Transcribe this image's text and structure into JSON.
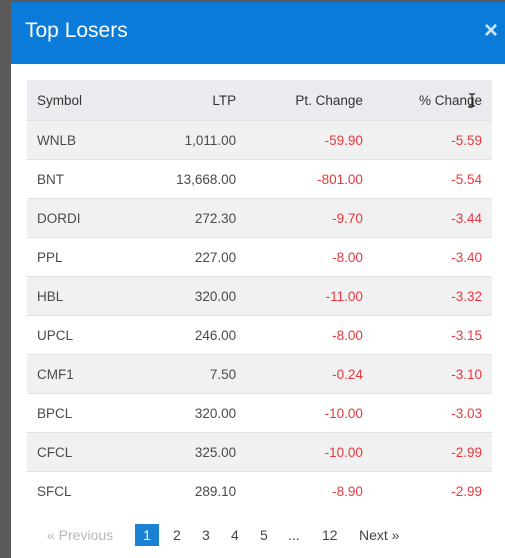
{
  "modal": {
    "title": "Top Losers",
    "close_glyph": "×"
  },
  "table": {
    "headers": [
      "Symbol",
      "LTP",
      "Pt. Change",
      "% Change"
    ],
    "rows": [
      {
        "symbol": "WNLB",
        "ltp": "1,011.00",
        "pt_change": "-59.90",
        "pct_change": "-5.59"
      },
      {
        "symbol": "BNT",
        "ltp": "13,668.00",
        "pt_change": "-801.00",
        "pct_change": "-5.54"
      },
      {
        "symbol": "DORDI",
        "ltp": "272.30",
        "pt_change": "-9.70",
        "pct_change": "-3.44"
      },
      {
        "symbol": "PPL",
        "ltp": "227.00",
        "pt_change": "-8.00",
        "pct_change": "-3.40"
      },
      {
        "symbol": "HBL",
        "ltp": "320.00",
        "pt_change": "-11.00",
        "pct_change": "-3.32"
      },
      {
        "symbol": "UPCL",
        "ltp": "246.00",
        "pt_change": "-8.00",
        "pct_change": "-3.15"
      },
      {
        "symbol": "CMF1",
        "ltp": "7.50",
        "pt_change": "-0.24",
        "pct_change": "-3.10"
      },
      {
        "symbol": "BPCL",
        "ltp": "320.00",
        "pt_change": "-10.00",
        "pct_change": "-3.03"
      },
      {
        "symbol": "CFCL",
        "ltp": "325.00",
        "pt_change": "-10.00",
        "pct_change": "-2.99"
      },
      {
        "symbol": "SFCL",
        "ltp": "289.10",
        "pt_change": "-8.90",
        "pct_change": "-2.99"
      }
    ]
  },
  "pagination": {
    "previous": "« Previous",
    "pages": [
      "1",
      "2",
      "3",
      "4",
      "5"
    ],
    "ellipsis": "...",
    "last": "12",
    "next": "Next »",
    "current": "1"
  },
  "colors": {
    "header_blue": "#0a7bd8",
    "negative_red": "#e8383d",
    "active_page": "#1a82d4"
  }
}
